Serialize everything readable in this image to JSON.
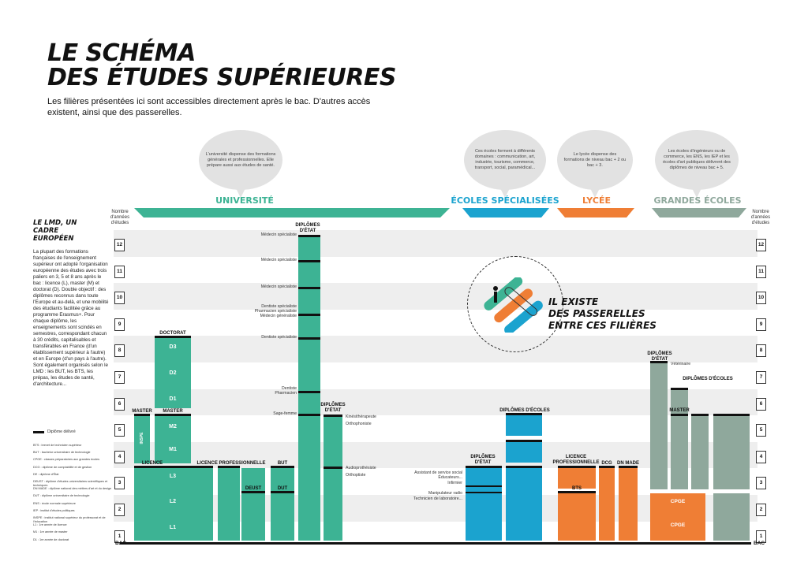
{
  "title_line1": "LE SCHÉMA",
  "title_line2": "DES ÉTUDES SUPÉRIEURES",
  "subtitle": "Les filières présentées ici sont accessibles directement après le bac. D'autres accès existent, ainsi que des passerelles.",
  "colors": {
    "universite": "#3db394",
    "universite_light": "#7fd0b8",
    "ecoles_spec": "#1ba3cf",
    "lycee": "#ef7e35",
    "grandes_ecoles": "#8fa89c",
    "grandes_ecoles_light": "#b8c9c0"
  },
  "bubbles": {
    "universite": "L'université dispense des formations générales et professionnelles. Elle prépare aussi aux études de santé.",
    "ecoles_spec": "Ces écoles forment à différents domaines : communication, art, industrie, tourisme, commerce, transport, social, paramédical...",
    "lycee": "Le lycée dispense des formations de niveau bac + 2 ou bac + 3.",
    "grandes_ecoles": "Les écoles d'ingénieurs ou de commerce, les ENS, les IEP et les écoles d'art publiques délivrent des diplômes de niveau bac + 5."
  },
  "sections": {
    "universite": "UNIVERSITÉ",
    "ecoles_spec": "ÉCOLES SPÉCIALISÉES",
    "lycee": "LYCÉE",
    "grandes_ecoles": "GRANDES ÉCOLES"
  },
  "axis": {
    "header": "Nombre d'années d'études",
    "years": [
      "12",
      "11",
      "10",
      "9",
      "8",
      "7",
      "6",
      "5",
      "4",
      "3",
      "2",
      "1"
    ],
    "bac": "BAC"
  },
  "lmd": {
    "title": "LE LMD, UN CADRE EUROPÉEN",
    "body": "La plupart des formations françaises de l'enseignement supérieur ont adopté l'organisation européenne des études avec trois paliers en 3, 5 et 8 ans après le bac : licence (L), master (M) et doctorat (D). Double objectif : des diplômes reconnus dans toute l'Europe et au-delà, et une mobilité des étudiants facilitée grâce au programme Erasmus+. Pour chaque diplôme, les enseignements sont scindés en semestres, correspondant chacun à 30 crédits, capitalisables et transférables en France (d'un établissement supérieur à l'autre) et en Europe (d'un pays à l'autre). Sont également organisés selon le LMD : les BUT, les BTS, les prépas, les études de santé, d'architecture..."
  },
  "legend": {
    "diplome": "Diplôme délivré",
    "items": [
      "BTS : brevet de technicien supérieur",
      "BUT : bachelor universitaire de technologie",
      "CPGE : classes préparatoires aux grandes écoles",
      "DCG : diplôme de comptabilité et de gestion",
      "DE : diplôme d'État",
      "DEUST : diplôme d'études universitaires scientifiques et techniques",
      "DN MADE : diplôme national des métiers d'art et du design",
      "DUT : diplôme universitaire de technologie",
      "ENS : école normale supérieure",
      "IEP : institut d'études politiques",
      "INSPE : institut national supérieur du professorat et de l'éducation",
      "L1 : 1re année de licence",
      "M1 : 1re année de master",
      "D1 : 1re année de doctorat"
    ]
  },
  "univ": {
    "doctorat": "DOCTORAT",
    "d3": "D3",
    "d2": "D2",
    "d1": "D1",
    "master": "MASTER",
    "master2": "MASTER",
    "inspe": "INSPE",
    "m2": "M2",
    "m1": "M1",
    "licence": "LICENCE",
    "l3": "L3",
    "l2": "L2",
    "l1": "L1",
    "licence_pro": "LICENCE PROFESSIONNELLE",
    "but": "BUT",
    "deust": "DEUST",
    "dut": "DUT",
    "diplomes_etat": "DIPLÔMES D'ÉTAT",
    "diplomes_etat2": "DIPLÔMES D'ÉTAT",
    "sante": [
      "Médecin spécialiste",
      "Médecin spécialiste",
      "Médecin spécialiste",
      "Dentiste spécialiste",
      "Pharmacien spécialiste",
      "Médecin généraliste",
      "Dentiste spécialiste",
      "Dentiste",
      "Pharmacien",
      "Sage-femme"
    ],
    "para": [
      "Kinésithérapeute",
      "Orthophoniste",
      "Audioprothésiste",
      "Orthoptiste"
    ]
  },
  "ecoles": {
    "diplomes_etat": "DIPLÔMES D'ÉTAT",
    "diplomes_ecoles": "DIPLÔMES D'ÉCOLES",
    "metiers": [
      "Assistant de service social",
      "Éducateurs...",
      "Infirmier",
      "Manipulateur radio",
      "Technicien de laboratoire..."
    ]
  },
  "lycee": {
    "licence_pro": "LICENCE PROFESSIONNELLE",
    "dcg": "DCG",
    "dnmade": "DN MADE",
    "bts": "BTS",
    "cpge": "CPGE",
    "cpge2": "CPGE"
  },
  "grandes": {
    "diplomes_etat": "DIPLÔMES D'ÉTAT",
    "veterinaire": "Vétérinaire",
    "diplomes_ecoles": "DIPLÔMES D'ÉCOLES",
    "master": "MASTER"
  },
  "passerelles": {
    "line1": "IL EXISTE",
    "line2": "DES PASSERELLES",
    "line3": "ENTRE CES FILIÈRES"
  }
}
